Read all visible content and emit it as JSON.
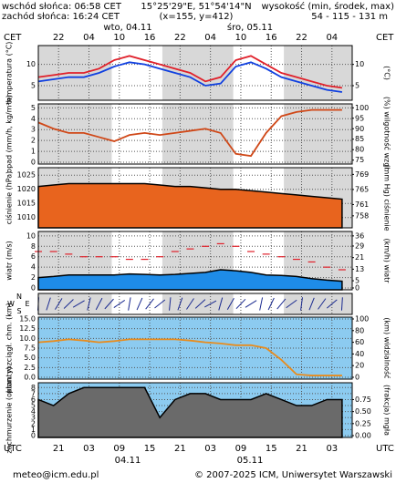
{
  "header": {
    "sunrise": "wschód słońca: 06:58 CET",
    "sunset": "zachód słońca: 16:24 CET",
    "coords": "15°25'29\"E, 51°54'14\"N",
    "grid_point": "(x=155, y=412)",
    "elevation_label": "wysokość (min, środek, max)",
    "elevation": "54 - 115 - 131 m",
    "top_zone": "CET",
    "bottom_zone": "UTC",
    "day1_top": "wto, 04.11",
    "day2_top": "śro, 05.11",
    "day1_bottom": "04.11",
    "day2_bottom": "05.11"
  },
  "footer": {
    "email": "meteo@icm.edu.pl",
    "copyright": "© 2007-2025 ICM, Uniwersytet Warszawski"
  },
  "chart_data": {
    "type": "meteogram",
    "xlim": [
      0,
      62
    ],
    "x": [
      0,
      3,
      6,
      9,
      12,
      15,
      18,
      21,
      24,
      27,
      30,
      33,
      36,
      39,
      42,
      45,
      48,
      51,
      54,
      57,
      60
    ],
    "xticks": [
      {
        "value": 4,
        "label": "21"
      },
      {
        "value": 10,
        "label": "03"
      },
      {
        "value": 16,
        "label": "09"
      },
      {
        "value": 22,
        "label": "15"
      },
      {
        "value": 28,
        "label": "21"
      },
      {
        "value": 34,
        "label": "03"
      },
      {
        "value": 40,
        "label": "09"
      },
      {
        "value": 46,
        "label": "15"
      },
      {
        "value": 52,
        "label": "21"
      },
      {
        "value": 58,
        "label": "03"
      }
    ],
    "xticks_top": [
      {
        "value": 4,
        "label": "22"
      },
      {
        "value": 10,
        "label": "04"
      },
      {
        "value": 16,
        "label": "10"
      },
      {
        "value": 22,
        "label": "16"
      },
      {
        "value": 28,
        "label": "22"
      },
      {
        "value": 34,
        "label": "04"
      },
      {
        "value": 40,
        "label": "10"
      },
      {
        "value": 46,
        "label": "16"
      },
      {
        "value": 52,
        "label": "22"
      },
      {
        "value": 58,
        "label": "04"
      }
    ],
    "panels": [
      {
        "ylabel": "temperatura (°C)",
        "y2label": "(°C)",
        "ylim": [
          2,
          14
        ],
        "yticks": [
          5,
          10
        ],
        "y2lim": [
          2,
          14
        ],
        "y2ticks": [
          5,
          10
        ],
        "background": "#ffffff",
        "series": [
          {
            "style": "line",
            "color": "#e0202a",
            "values": [
              7,
              7.5,
              8,
              8,
              9,
              11,
              12,
              11,
              10,
              9,
              8,
              6,
              7,
              11,
              12,
              10,
              8,
              7,
              6,
              5,
              4.5
            ]
          },
          {
            "style": "line",
            "color": "#1040e0",
            "values": [
              6,
              6.5,
              7,
              7,
              8,
              9.5,
              10.5,
              10,
              9,
              8,
              7,
              5,
              5.5,
              9.5,
              10.5,
              9,
              7,
              6,
              5,
              4,
              3.5
            ]
          }
        ]
      },
      {
        "ylabel": "opad (mm/h, kg/m²h)",
        "y2label": "(%) wilgotność wzgl.",
        "ylim": [
          0,
          5.2
        ],
        "yticks": [
          0,
          1,
          2,
          3,
          4,
          5
        ],
        "y2lim": [
          74,
          101
        ],
        "y2ticks": [
          75,
          80,
          85,
          90,
          95,
          100
        ],
        "background": "#ffffff",
        "series": [
          {
            "style": "line",
            "axis": "y2",
            "color": "#d04818",
            "values": [
              93,
              90,
              88,
              88,
              86,
              84,
              87,
              88,
              87,
              88,
              89,
              90,
              88,
              78,
              77,
              88,
              96,
              98,
              99,
              99,
              99
            ]
          }
        ]
      },
      {
        "ylabel": "ciśnienie (hPa)",
        "y2label": "(mm Hg) ciśnienie",
        "ylim": [
          1007,
          1027
        ],
        "yticks": [
          1010,
          1015,
          1020,
          1025
        ],
        "y2lim": [
          755.3,
          770.3
        ],
        "y2ticks": [
          758,
          761,
          765,
          769
        ],
        "background": "#ffffff",
        "series": [
          {
            "style": "area",
            "color": "#e8641e",
            "values": [
              1021,
              1021.5,
              1022,
              1022,
              1022,
              1022,
              1022,
              1022,
              1021.5,
              1021,
              1021,
              1020.5,
              1020,
              1020,
              1019.5,
              1019,
              1018.5,
              1018,
              1017.5,
              1017,
              1016.5
            ]
          }
        ]
      },
      {
        "ylabel": "wiatr (m/s)",
        "y2label": "(km/h) wiatr",
        "ylim": [
          0,
          10.5
        ],
        "yticks": [
          0,
          2,
          4,
          6,
          8,
          10
        ],
        "y2lim": [
          0,
          37.8
        ],
        "y2ticks": [
          0,
          5,
          13,
          21,
          29,
          36
        ],
        "background": "#ffffff",
        "series": [
          {
            "style": "area",
            "color": "#1e8ce8",
            "values": [
              2,
              2.2,
              2.5,
              2.5,
              2.5,
              2.5,
              2.7,
              2.6,
              2.5,
              2.6,
              2.8,
              3,
              3.5,
              3.3,
              3,
              2.5,
              2.4,
              2.2,
              1.8,
              1.5,
              1.3
            ]
          },
          {
            "style": "dash",
            "color": "#e0202a",
            "values": [
              7,
              7,
              6.5,
              6,
              6,
              6,
              5.5,
              5.5,
              6,
              7,
              7.5,
              8,
              8.5,
              8,
              7,
              6.5,
              6,
              5.5,
              5,
              4,
              3.5
            ]
          }
        ]
      },
      {
        "compass": [
          "N",
          "S",
          "W",
          "E"
        ]
      },
      {
        "ylabel": "pion. rozciągł. chm. (km)",
        "y2label": "(km) widzialność",
        "ylim": [
          0,
          15
        ],
        "yticks": [
          {
            "value": 0,
            "label": "0.0"
          },
          {
            "value": 2.5,
            "label": "2.5"
          },
          {
            "value": 5,
            "label": "5.0"
          },
          {
            "value": 7.5,
            "label": "7.5"
          },
          {
            "value": 10,
            "label": "10.0"
          },
          {
            "value": 12.5,
            "label": "12.5"
          },
          {
            "value": 15,
            "label": "15.0"
          }
        ],
        "y2lim": [
          0,
          100
        ],
        "y2ticks": [
          0,
          20,
          40,
          60,
          80,
          100
        ],
        "background": "#8ccbf0",
        "series": [
          {
            "style": "line",
            "axis": "y2",
            "color": "#e88c1e",
            "values": [
              60,
              62,
              65,
              63,
              60,
              62,
              65,
              65,
              65,
              65,
              63,
              60,
              58,
              55,
              55,
              50,
              30,
              5,
              3,
              3,
              3
            ]
          }
        ]
      },
      {
        "ylabel": "zachmurzenie (oktanty)",
        "y2label": "(frakcja) mgła",
        "ylim": [
          0,
          8.5
        ],
        "yticks": [
          0,
          1,
          2,
          3,
          4,
          5,
          6,
          7,
          8
        ],
        "y2lim": [
          0,
          1.0625
        ],
        "y2ticks": [
          {
            "value": 0,
            "label": "0.00"
          },
          {
            "value": 0.25,
            "label": "0.25"
          },
          {
            "value": 0.5,
            "label": "0.50"
          },
          {
            "value": 0.75,
            "label": "0.75"
          }
        ],
        "background": "#8ccbf0",
        "series": [
          {
            "style": "area",
            "color": "#6a6a6a",
            "values": [
              6,
              5,
              7,
              8,
              8,
              8,
              8,
              8,
              3,
              6,
              7,
              7,
              6,
              6,
              6,
              7,
              6,
              5,
              5,
              6,
              6
            ]
          }
        ]
      }
    ]
  }
}
